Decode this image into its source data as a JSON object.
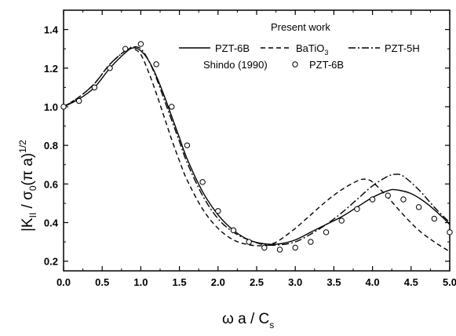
{
  "chart_data": {
    "type": "line",
    "xlabel": {
      "main": "ω a / C",
      "sub": "s"
    },
    "ylabel": {
      "part1": "|K",
      "sub1": "II",
      "part2": " / σ",
      "sub2": "0",
      "part3": "(π a)",
      "sup": "1/2"
    },
    "xlim": [
      0.0,
      5.0
    ],
    "ylim": [
      0.15,
      1.5
    ],
    "xticks": [
      "0.0",
      "0.5",
      "1.0",
      "1.5",
      "2.0",
      "2.5",
      "3.0",
      "3.5",
      "4.0",
      "4.5",
      "5.0"
    ],
    "yticks": [
      "0.2",
      "0.4",
      "0.6",
      "0.8",
      "1.0",
      "1.2",
      "1.4"
    ],
    "grid": false,
    "legend_position": "top-right",
    "legend": {
      "heading": "Present work",
      "pzt6b": "PZT-6B",
      "batio3_main": "BaTiO",
      "batio3_sub": "3",
      "pzt5h": "PZT-5H",
      "shindo_label": "Shindo (1990)",
      "shindo_series": "PZT-6B"
    },
    "series": [
      {
        "name": "PZT-6B",
        "style": "solid",
        "x": [
          0.0,
          0.2,
          0.4,
          0.6,
          0.8,
          0.9,
          1.0,
          1.1,
          1.2,
          1.3,
          1.4,
          1.5,
          1.6,
          1.8,
          2.0,
          2.2,
          2.4,
          2.6,
          2.8,
          3.0,
          3.2,
          3.4,
          3.6,
          3.8,
          4.0,
          4.2,
          4.3,
          4.5,
          4.7,
          4.9,
          5.0
        ],
        "y": [
          1.0,
          1.04,
          1.1,
          1.2,
          1.28,
          1.305,
          1.29,
          1.24,
          1.16,
          1.06,
          0.95,
          0.84,
          0.73,
          0.56,
          0.44,
          0.36,
          0.31,
          0.29,
          0.29,
          0.31,
          0.35,
          0.39,
          0.43,
          0.48,
          0.53,
          0.565,
          0.57,
          0.55,
          0.5,
          0.43,
          0.39
        ]
      },
      {
        "name": "BaTiO3",
        "style": "dashed",
        "x": [
          0.0,
          0.2,
          0.4,
          0.6,
          0.8,
          0.9,
          1.0,
          1.1,
          1.2,
          1.3,
          1.4,
          1.5,
          1.6,
          1.8,
          2.0,
          2.2,
          2.4,
          2.6,
          2.7,
          2.8,
          3.0,
          3.2,
          3.4,
          3.6,
          3.8,
          3.9,
          4.0,
          4.2,
          4.4,
          4.6,
          4.8,
          5.0
        ],
        "y": [
          1.0,
          1.05,
          1.12,
          1.22,
          1.29,
          1.3,
          1.27,
          1.18,
          1.07,
          0.95,
          0.83,
          0.72,
          0.62,
          0.47,
          0.37,
          0.31,
          0.285,
          0.28,
          0.29,
          0.31,
          0.37,
          0.44,
          0.51,
          0.57,
          0.615,
          0.625,
          0.61,
          0.53,
          0.44,
          0.36,
          0.3,
          0.25
        ]
      },
      {
        "name": "PZT-5H",
        "style": "dashdot",
        "x": [
          0.0,
          0.2,
          0.4,
          0.6,
          0.8,
          0.9,
          1.0,
          1.1,
          1.2,
          1.3,
          1.4,
          1.5,
          1.6,
          1.8,
          2.0,
          2.2,
          2.4,
          2.6,
          2.8,
          3.0,
          3.2,
          3.4,
          3.6,
          3.8,
          4.0,
          4.2,
          4.3,
          4.4,
          4.6,
          4.8,
          5.0
        ],
        "y": [
          1.0,
          1.05,
          1.12,
          1.22,
          1.29,
          1.31,
          1.3,
          1.24,
          1.15,
          1.04,
          0.93,
          0.82,
          0.71,
          0.54,
          0.42,
          0.35,
          0.31,
          0.285,
          0.285,
          0.3,
          0.34,
          0.39,
          0.45,
          0.52,
          0.59,
          0.64,
          0.65,
          0.64,
          0.57,
          0.48,
          0.4
        ]
      },
      {
        "name": "Shindo (1990) PZT-6B",
        "style": "markers",
        "x": [
          0.0,
          0.2,
          0.4,
          0.6,
          0.8,
          1.0,
          1.2,
          1.4,
          1.6,
          1.8,
          2.0,
          2.2,
          2.4,
          2.6,
          2.8,
          3.0,
          3.2,
          3.4,
          3.6,
          3.8,
          4.0,
          4.2,
          4.4,
          4.6,
          4.8,
          5.0
        ],
        "y": [
          1.0,
          1.03,
          1.1,
          1.2,
          1.3,
          1.325,
          1.22,
          1.0,
          0.8,
          0.61,
          0.46,
          0.36,
          0.3,
          0.27,
          0.26,
          0.27,
          0.3,
          0.35,
          0.41,
          0.47,
          0.52,
          0.54,
          0.52,
          0.48,
          0.42,
          0.35
        ]
      }
    ]
  }
}
